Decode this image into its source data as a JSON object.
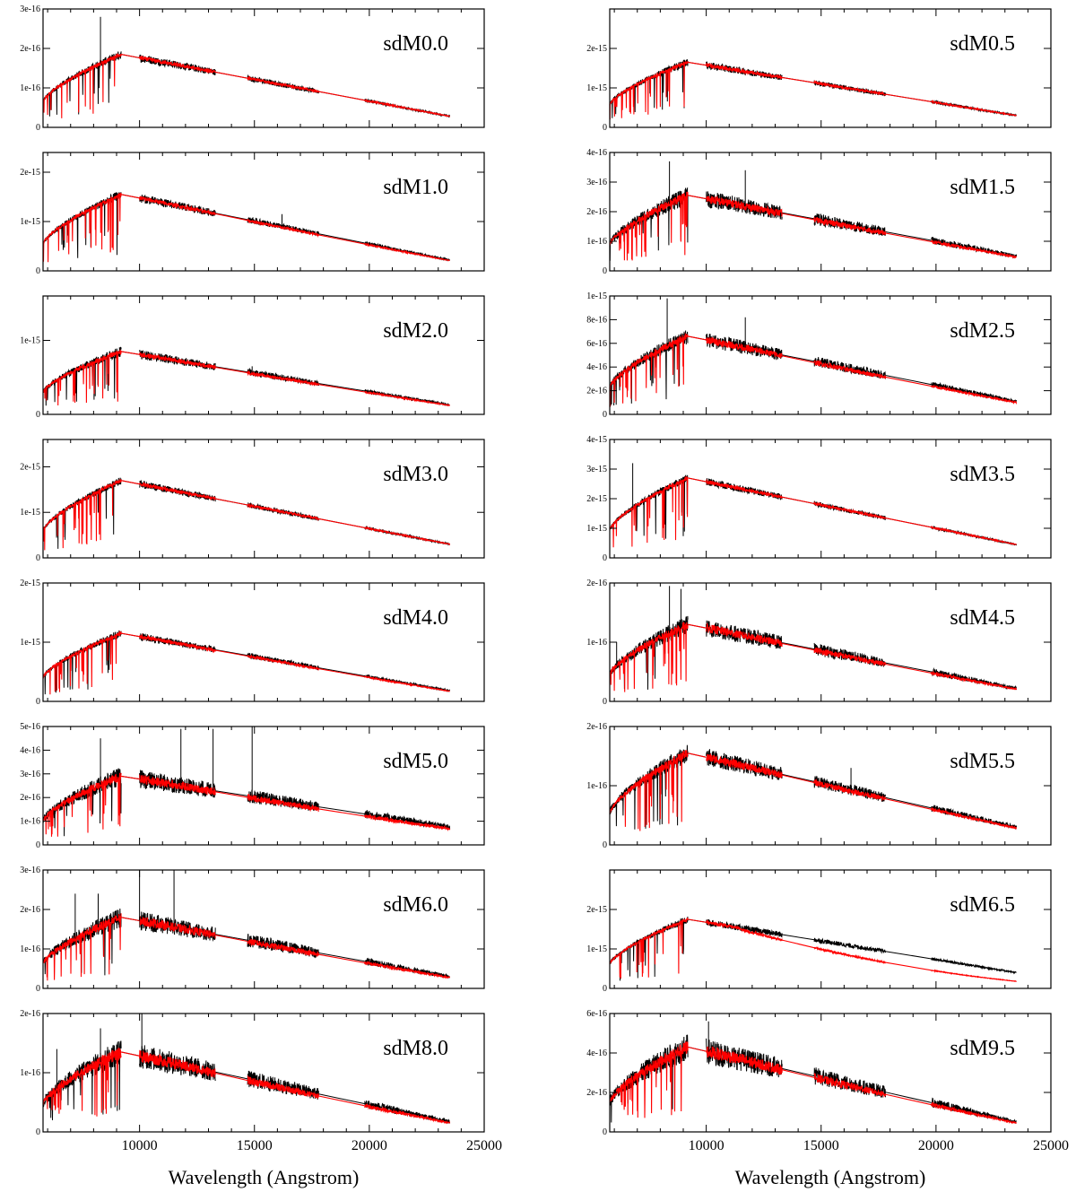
{
  "chart_data": {
    "type": "line",
    "xlabel": "Wavelength (Angstrom)",
    "xlim": [
      5800,
      25000
    ],
    "xticks": [
      10000,
      15000,
      20000,
      25000
    ],
    "series_colors": {
      "observed": "#000000",
      "model": "#ff0000"
    },
    "panels": [
      {
        "name": "sdM0.0",
        "column": 0,
        "row": 0,
        "ymax": 3e-16,
        "yticks": [
          0,
          1e-16,
          2e-16,
          3e-16
        ],
        "ytick_labels": [
          "0",
          "1e-16",
          "2e-16",
          "3e-16"
        ],
        "peak": 1.85e-16,
        "tail": 2.8e-17,
        "noise": 0.06,
        "model_bias": 0.0,
        "spikes": [
          [
            8300,
            2.8e-16
          ]
        ]
      },
      {
        "name": "sdM0.5",
        "column": 1,
        "row": 0,
        "ymax": 3e-15,
        "yticks": [
          0,
          1e-15,
          2e-15
        ],
        "ytick_labels": [
          "0",
          "1e-15",
          "2e-15"
        ],
        "peak": 1.65e-15,
        "tail": 3e-16,
        "noise": 0.06,
        "model_bias": 0.0,
        "spikes": []
      },
      {
        "name": "sdM1.0",
        "column": 0,
        "row": 1,
        "ymax": 2.4e-15,
        "yticks": [
          0,
          1e-15,
          2e-15
        ],
        "ytick_labels": [
          "0",
          "1e-15",
          "2e-15"
        ],
        "peak": 1.55e-15,
        "tail": 2.2e-16,
        "noise": 0.06,
        "model_bias": -0.05,
        "spikes": [
          [
            16200,
            1.15e-15
          ]
        ]
      },
      {
        "name": "sdM1.5",
        "column": 1,
        "row": 1,
        "ymax": 4e-16,
        "yticks": [
          0,
          1e-16,
          2e-16,
          3e-16,
          4e-16
        ],
        "ytick_labels": [
          "0",
          "1e-16",
          "2e-16",
          "3e-16",
          "4e-16"
        ],
        "peak": 2.55e-16,
        "tail": 5e-17,
        "noise": 0.12,
        "model_bias": -0.06,
        "spikes": [
          [
            8400,
            3.7e-16
          ],
          [
            11700,
            3.4e-16
          ]
        ]
      },
      {
        "name": "sdM2.0",
        "column": 0,
        "row": 2,
        "ymax": 1.6e-15,
        "yticks": [
          0,
          1e-15
        ],
        "ytick_labels": [
          "0",
          "1e-15"
        ],
        "peak": 8.5e-16,
        "tail": 1.3e-16,
        "noise": 0.08,
        "model_bias": -0.06,
        "spikes": [
          [
            14900,
            6.5e-16
          ]
        ]
      },
      {
        "name": "sdM2.5",
        "column": 1,
        "row": 2,
        "ymax": 1e-15,
        "yticks": [
          0,
          2e-16,
          4e-16,
          6e-16,
          8e-16,
          1e-15
        ],
        "ytick_labels": [
          "0",
          "2e-16",
          "4e-16",
          "6e-16",
          "8e-16",
          "1e-15"
        ],
        "peak": 6.6e-16,
        "tail": 1.1e-16,
        "noise": 0.1,
        "model_bias": -0.08,
        "spikes": [
          [
            8300,
            9.8e-16
          ],
          [
            11700,
            8.2e-16
          ]
        ]
      },
      {
        "name": "sdM3.0",
        "column": 0,
        "row": 3,
        "ymax": 2.6e-15,
        "yticks": [
          0,
          1e-15,
          2e-15
        ],
        "ytick_labels": [
          "0",
          "1e-15",
          "2e-15"
        ],
        "peak": 1.7e-15,
        "tail": 3e-16,
        "noise": 0.05,
        "model_bias": 0.0,
        "spikes": []
      },
      {
        "name": "sdM3.5",
        "column": 1,
        "row": 3,
        "ymax": 4e-15,
        "yticks": [
          0,
          1e-15,
          2e-15,
          3e-15,
          4e-15
        ],
        "ytick_labels": [
          "0",
          "1e-15",
          "2e-15",
          "3e-15",
          "4e-15"
        ],
        "peak": 2.7e-15,
        "tail": 4.5e-16,
        "noise": 0.05,
        "model_bias": 0.0,
        "spikes": [
          [
            6800,
            3.2e-15
          ]
        ]
      },
      {
        "name": "sdM4.0",
        "column": 0,
        "row": 4,
        "ymax": 2e-15,
        "yticks": [
          0,
          1e-15,
          2e-15
        ],
        "ytick_labels": [
          "0",
          "1e-15",
          "2e-15"
        ],
        "peak": 1.15e-15,
        "tail": 1.8e-16,
        "noise": 0.06,
        "model_bias": -0.05,
        "spikes": []
      },
      {
        "name": "sdM4.5",
        "column": 1,
        "row": 4,
        "ymax": 2e-16,
        "yticks": [
          0,
          1e-16,
          2e-16
        ],
        "ytick_labels": [
          "0",
          "1e-16",
          "2e-16"
        ],
        "peak": 1.3e-16,
        "tail": 2.2e-17,
        "noise": 0.12,
        "model_bias": -0.06,
        "spikes": [
          [
            8400,
            1.95e-16
          ],
          [
            8900,
            1.9e-16
          ],
          [
            6100,
            1e-16
          ]
        ]
      },
      {
        "name": "sdM5.0",
        "column": 0,
        "row": 5,
        "ymax": 5e-16,
        "yticks": [
          0,
          1e-16,
          2e-16,
          3e-16,
          4e-16,
          5e-16
        ],
        "ytick_labels": [
          "0",
          "1e-16",
          "2e-16",
          "3e-16",
          "4e-16",
          "5e-16"
        ],
        "peak": 2.9e-16,
        "tail": 7.5e-17,
        "noise": 0.14,
        "model_bias": -0.1,
        "spikes": [
          [
            8300,
            4.5e-16
          ],
          [
            11800,
            4.9e-16
          ],
          [
            13200,
            4.9e-16
          ],
          [
            14900,
            5e-16
          ]
        ]
      },
      {
        "name": "sdM5.5",
        "column": 1,
        "row": 5,
        "ymax": 2e-16,
        "yticks": [
          0,
          1e-16,
          2e-16
        ],
        "ytick_labels": [
          "0",
          "1e-16",
          "2e-16"
        ],
        "peak": 1.55e-16,
        "tail": 3e-17,
        "noise": 0.1,
        "model_bias": -0.05,
        "spikes": [
          [
            16300,
            1.3e-16
          ]
        ]
      },
      {
        "name": "sdM6.0",
        "column": 0,
        "row": 6,
        "ymax": 3e-16,
        "yticks": [
          0,
          1e-16,
          2e-16,
          3e-16
        ],
        "ytick_labels": [
          "0",
          "1e-16",
          "2e-16",
          "3e-16"
        ],
        "peak": 1.8e-16,
        "tail": 3e-17,
        "noise": 0.14,
        "model_bias": -0.08,
        "spikes": [
          [
            10000,
            3e-16
          ],
          [
            11500,
            3e-16
          ],
          [
            7200,
            2.4e-16
          ],
          [
            8200,
            2.4e-16
          ]
        ]
      },
      {
        "name": "sdM6.5",
        "column": 1,
        "row": 6,
        "ymax": 3e-15,
        "yticks": [
          0,
          1e-15,
          2e-15
        ],
        "ytick_labels": [
          "0",
          "1e-15",
          "2e-15"
        ],
        "peak": 1.75e-15,
        "tail": 4e-16,
        "noise": 0.05,
        "model_bias": -0.55,
        "spikes": []
      },
      {
        "name": "sdM8.0",
        "column": 0,
        "row": 7,
        "ymax": 2e-16,
        "yticks": [
          0,
          1e-16,
          2e-16
        ],
        "ytick_labels": [
          "0",
          "1e-16",
          "2e-16"
        ],
        "peak": 1.35e-16,
        "tail": 1.7e-17,
        "noise": 0.16,
        "model_bias": -0.1,
        "spikes": [
          [
            6400,
            1.4e-16
          ],
          [
            8300,
            1.75e-16
          ],
          [
            10100,
            2e-16
          ]
        ]
      },
      {
        "name": "sdM9.5",
        "column": 1,
        "row": 7,
        "ymax": 6e-16,
        "yticks": [
          0,
          2e-16,
          4e-16,
          6e-16
        ],
        "ytick_labels": [
          "0",
          "2e-16",
          "4e-16",
          "6e-16"
        ],
        "peak": 4.3e-16,
        "tail": 5e-17,
        "noise": 0.16,
        "model_bias": -0.1,
        "spikes": [
          [
            10100,
            5.6e-16
          ]
        ]
      }
    ]
  }
}
